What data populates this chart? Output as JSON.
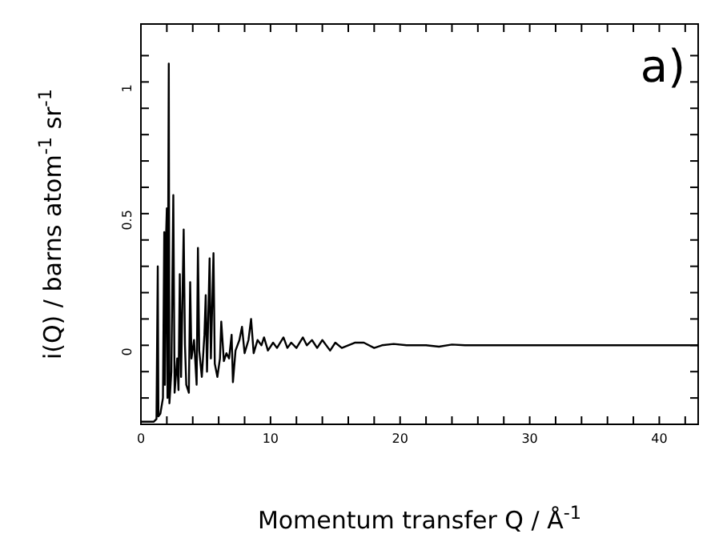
{
  "chart_data": {
    "type": "line",
    "xlabel": "Momentum transfer Q / Å$^{-1}$",
    "ylabel": "i(Q) / barns atom$^{-1}$ sr$^{-1}$",
    "annotations": [
      "a)"
    ],
    "x": [
      0,
      1.0,
      1.2,
      1.3,
      1.35,
      1.5,
      1.7,
      1.8,
      1.85,
      1.95,
      2.0,
      2.05,
      2.15,
      2.2,
      2.35,
      2.5,
      2.6,
      2.8,
      2.9,
      3.0,
      3.1,
      3.3,
      3.4,
      3.5,
      3.7,
      3.8,
      3.9,
      4.1,
      4.3,
      4.4,
      4.5,
      4.7,
      4.9,
      5.0,
      5.1,
      5.3,
      5.4,
      5.6,
      5.7,
      5.9,
      6.1,
      6.2,
      6.4,
      6.6,
      6.8,
      7.0,
      7.1,
      7.3,
      7.6,
      7.8,
      8.0,
      8.3,
      8.5,
      8.7,
      9.0,
      9.3,
      9.5,
      9.8,
      10.2,
      10.5,
      11.0,
      11.3,
      11.6,
      12.0,
      12.5,
      12.8,
      13.2,
      13.6,
      14.0,
      14.6,
      15.0,
      15.5,
      16.0,
      16.5,
      17.2,
      18.0,
      18.6,
      19.5,
      20.5,
      22,
      23,
      24,
      25,
      30,
      43
    ],
    "series": [
      {
        "color": "#000000",
        "values": [
          -0.29,
          -0.29,
          -0.28,
          0.3,
          -0.27,
          -0.26,
          -0.2,
          0.43,
          -0.15,
          0.43,
          0.52,
          -0.2,
          1.07,
          -0.22,
          -0.1,
          0.57,
          -0.18,
          -0.05,
          -0.17,
          0.27,
          -0.12,
          0.44,
          0.0,
          -0.15,
          -0.18,
          0.24,
          -0.05,
          0.02,
          -0.15,
          0.37,
          -0.02,
          -0.12,
          0.04,
          0.19,
          -0.1,
          0.33,
          -0.05,
          0.35,
          -0.07,
          -0.12,
          -0.05,
          0.09,
          -0.06,
          -0.03,
          -0.05,
          0.04,
          -0.14,
          -0.02,
          0.02,
          0.07,
          -0.03,
          0.02,
          0.1,
          -0.03,
          0.02,
          0.0,
          0.03,
          -0.02,
          0.01,
          -0.01,
          0.03,
          -0.01,
          0.01,
          -0.01,
          0.03,
          0.0,
          0.02,
          -0.01,
          0.02,
          -0.02,
          0.01,
          -0.01,
          0.0,
          0.01,
          0.01,
          -0.01,
          0.0,
          0.005,
          0.0,
          0.0,
          -0.005,
          0.003,
          0.0,
          0.0,
          0.0
        ]
      }
    ],
    "xlim": [
      0,
      43
    ],
    "ylim": [
      -0.3,
      1.22
    ],
    "xticks": [
      0,
      {
        "value": 2,
        "label": null
      },
      {
        "value": 4,
        "label": null
      },
      {
        "value": 6,
        "label": null
      },
      {
        "value": 8,
        "label": null
      },
      10,
      {
        "value": 12,
        "label": null
      },
      {
        "value": 14,
        "label": null
      },
      {
        "value": 16,
        "label": null
      },
      {
        "value": 18,
        "label": null
      },
      20,
      {
        "value": 22,
        "label": null
      },
      {
        "value": 24,
        "label": null
      },
      {
        "value": 26,
        "label": null
      },
      {
        "value": 28,
        "label": null
      },
      30,
      {
        "value": 32,
        "label": null
      },
      {
        "value": 34,
        "label": null
      },
      {
        "value": 36,
        "label": null
      },
      {
        "value": 38,
        "label": null
      },
      40,
      {
        "value": 42,
        "label": null
      }
    ],
    "yticks": [
      {
        "value": -0.2,
        "label": null
      },
      {
        "value": -0.1,
        "label": null
      },
      0,
      {
        "value": 0.1,
        "label": null
      },
      {
        "value": 0.2,
        "label": null
      },
      {
        "value": 0.3,
        "label": null
      },
      {
        "value": 0.4,
        "label": null
      },
      0.5,
      {
        "value": 0.6,
        "label": null
      },
      {
        "value": 0.7,
        "label": null
      },
      {
        "value": 0.8,
        "label": null
      },
      {
        "value": 0.9,
        "label": null
      },
      1,
      {
        "value": 1.1,
        "label": null
      }
    ],
    "grid": false,
    "marker": "none",
    "line_style": "solid"
  }
}
